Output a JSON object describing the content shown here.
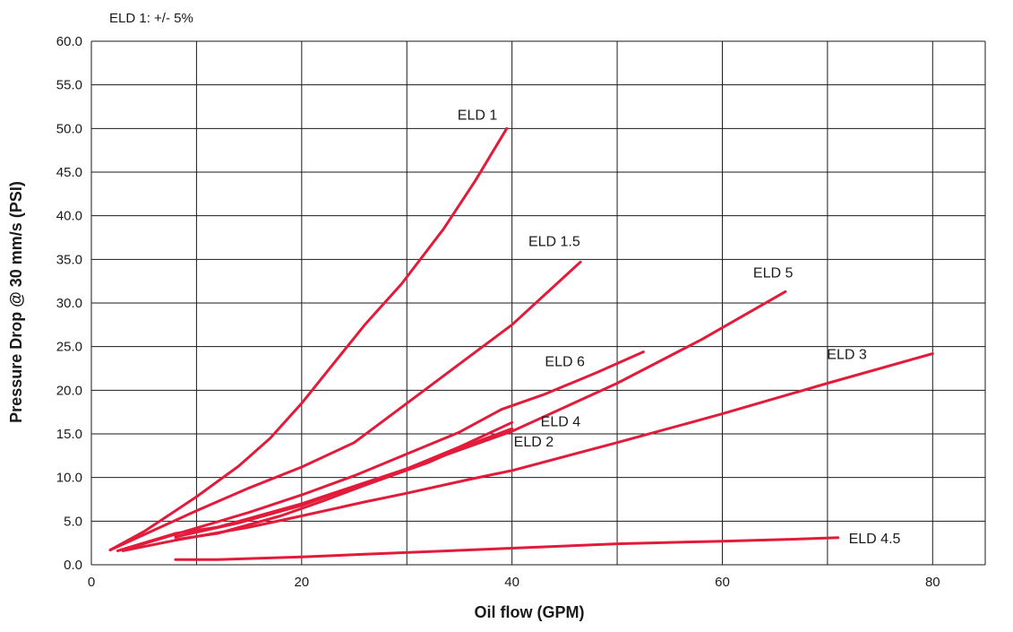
{
  "chart_data": {
    "type": "line",
    "title": "",
    "note": "ELD 1: +/- 5%",
    "xlabel": "Oil flow (GPM)",
    "ylabel": "Pressure Drop @  30 mm/s (PSI)",
    "xlim": [
      0,
      85
    ],
    "ylim": [
      0,
      60
    ],
    "x_ticks": [
      0,
      20,
      40,
      60,
      80
    ],
    "x_tick_labels": [
      "0",
      "20",
      "40",
      "60",
      "80"
    ],
    "x_gridlines": [
      0,
      10,
      20,
      30,
      40,
      50,
      60,
      70,
      80,
      85
    ],
    "y_ticks": [
      0,
      5,
      10,
      15,
      20,
      25,
      30,
      35,
      40,
      45,
      50,
      55,
      60
    ],
    "y_tick_labels": [
      "0.0",
      "5.0",
      "10.0",
      "15.0",
      "20.0",
      "25.0",
      "30.0",
      "35.0",
      "40.0",
      "45.0",
      "50.0",
      "55.0",
      "60.0"
    ],
    "grid": true,
    "line_color": "#e31b3b",
    "grid_color": "#1a1a1a",
    "series": [
      {
        "name": "ELD 1",
        "points": [
          [
            1.8,
            1.7
          ],
          [
            5,
            3.8
          ],
          [
            8,
            6.2
          ],
          [
            10,
            7.8
          ],
          [
            14,
            11.3
          ],
          [
            17,
            14.5
          ],
          [
            20,
            18.5
          ],
          [
            23,
            23.0
          ],
          [
            26,
            27.5
          ],
          [
            29.5,
            32.2
          ],
          [
            33.5,
            38.5
          ],
          [
            36.5,
            44.0
          ],
          [
            39.5,
            50.0
          ]
        ]
      },
      {
        "name": "ELD 1.5",
        "points": [
          [
            1.8,
            1.7
          ],
          [
            6,
            4.0
          ],
          [
            10,
            6.2
          ],
          [
            15,
            8.8
          ],
          [
            20,
            11.2
          ],
          [
            25,
            14.0
          ],
          [
            30,
            18.5
          ],
          [
            35,
            23.0
          ],
          [
            40,
            27.5
          ],
          [
            46.5,
            34.7
          ]
        ]
      },
      {
        "name": "ELD 5",
        "points": [
          [
            2.5,
            1.6
          ],
          [
            8,
            3.6
          ],
          [
            12,
            4.3
          ],
          [
            20,
            7.0
          ],
          [
            30,
            11.0
          ],
          [
            40,
            15.3
          ],
          [
            50,
            20.8
          ],
          [
            58,
            25.8
          ],
          [
            66,
            31.3
          ]
        ]
      },
      {
        "name": "ELD 6",
        "points": [
          [
            3,
            1.7
          ],
          [
            8,
            3.5
          ],
          [
            15,
            6.0
          ],
          [
            20,
            8.0
          ],
          [
            25,
            10.2
          ],
          [
            30,
            12.7
          ],
          [
            35,
            15.2
          ],
          [
            39,
            17.8
          ],
          [
            43,
            19.5
          ],
          [
            48,
            22.0
          ],
          [
            52.5,
            24.4
          ]
        ]
      },
      {
        "name": "ELD 4",
        "points": [
          [
            8,
            3.2
          ],
          [
            14,
            4.8
          ],
          [
            20,
            6.8
          ],
          [
            25,
            8.9
          ],
          [
            30,
            11.0
          ],
          [
            35,
            13.5
          ],
          [
            40,
            16.3
          ]
        ]
      },
      {
        "name": "ELD 2",
        "points": [
          [
            8,
            2.9
          ],
          [
            12,
            3.6
          ],
          [
            18,
            5.6
          ],
          [
            22,
            7.3
          ],
          [
            26,
            9.1
          ],
          [
            32,
            11.7
          ],
          [
            36,
            13.8
          ],
          [
            40,
            15.6
          ]
        ]
      },
      {
        "name": "ELD 3",
        "points": [
          [
            3,
            1.6
          ],
          [
            8,
            2.8
          ],
          [
            15,
            4.3
          ],
          [
            20,
            5.6
          ],
          [
            26,
            7.2
          ],
          [
            30,
            8.2
          ],
          [
            36,
            9.8
          ],
          [
            40,
            10.8
          ],
          [
            50,
            14.0
          ],
          [
            60,
            17.3
          ],
          [
            70,
            20.8
          ],
          [
            80,
            24.2
          ]
        ]
      },
      {
        "name": "ELD 4.5",
        "points": [
          [
            8,
            0.6
          ],
          [
            12,
            0.6
          ],
          [
            20,
            0.9
          ],
          [
            26,
            1.2
          ],
          [
            32,
            1.5
          ],
          [
            40,
            1.9
          ],
          [
            50,
            2.4
          ],
          [
            60,
            2.7
          ],
          [
            66,
            2.9
          ],
          [
            71,
            3.1
          ]
        ]
      }
    ]
  }
}
